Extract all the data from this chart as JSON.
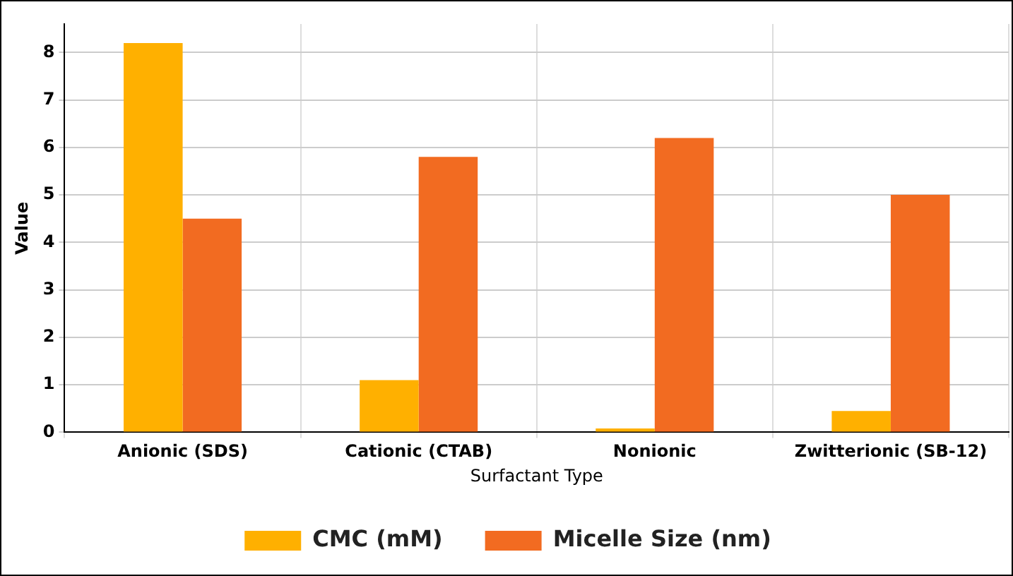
{
  "chart_data": {
    "type": "bar",
    "xlabel": "Surfactant Type",
    "ylabel": "Value",
    "categories": [
      "Anionic (SDS)",
      "Cationic (CTAB)",
      "Nonionic",
      "Zwitterionic (SB-12)"
    ],
    "series": [
      {
        "name": "CMC (mM)",
        "color": "#ffb000",
        "values": [
          8.2,
          1.1,
          0.08,
          0.45
        ]
      },
      {
        "name": "Micelle Size (nm)",
        "color": "#f26b21",
        "values": [
          4.5,
          5.8,
          6.2,
          5.0
        ]
      }
    ],
    "ylim": [
      0,
      8.6
    ],
    "yticks": [
      0,
      1,
      2,
      3,
      4,
      5,
      6,
      7,
      8
    ],
    "grid": true,
    "legend": "bottom"
  }
}
